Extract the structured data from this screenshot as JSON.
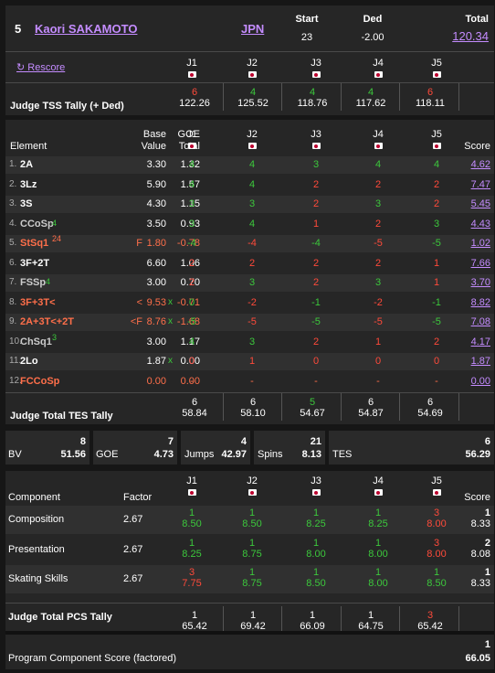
{
  "skater": {
    "rank": "5",
    "name": "Kaori SAKAMOTO",
    "nation": "JPN"
  },
  "summary": {
    "start_label": "Start",
    "start": "23",
    "ded_label": "Ded",
    "ded": "-2.00",
    "total_label": "Total",
    "total": "120.34"
  },
  "rescore": "↻ Rescore",
  "judges": [
    "J1",
    "J2",
    "J3",
    "J4",
    "J5"
  ],
  "tally": {
    "label": "Judge TSS Tally (+ Ded)",
    "ranks": [
      "6",
      "4",
      "4",
      "4",
      "6"
    ],
    "values": [
      "122.26",
      "125.52",
      "118.76",
      "117.62",
      "118.11"
    ]
  },
  "elements_header": {
    "element": "Element",
    "base": "Base",
    "value": "Value",
    "goe": "GOE",
    "total": "Total",
    "score": "Score"
  },
  "elements": [
    {
      "n": "1.",
      "name": "2A",
      "sup": "",
      "note": "",
      "base": "3.30",
      "x": "",
      "goe": "1.32",
      "j": [
        "4",
        "4",
        "3",
        "4",
        "4"
      ],
      "score": "4.62",
      "cls": "w"
    },
    {
      "n": "2.",
      "name": "3Lz",
      "sup": "",
      "note": "",
      "base": "5.90",
      "x": "",
      "goe": "1.57",
      "j": [
        "4",
        "4",
        "2",
        "2",
        "2"
      ],
      "score": "7.47",
      "cls": "w"
    },
    {
      "n": "3.",
      "name": "3S",
      "sup": "",
      "note": "",
      "base": "4.30",
      "x": "",
      "goe": "1.15",
      "j": [
        "3",
        "3",
        "2",
        "3",
        "2"
      ],
      "score": "5.45",
      "cls": "w"
    },
    {
      "n": "4.",
      "name": "CCoSp",
      "sup": "4",
      "note": "",
      "base": "3.50",
      "x": "",
      "goe": "0.93",
      "j": [
        "3",
        "4",
        "1",
        "2",
        "3"
      ],
      "score": "4.43",
      "cls": "y"
    },
    {
      "n": "5.",
      "name": "StSq1",
      "sup": "24",
      "note": "F",
      "base": "1.80",
      "x": "",
      "goe": "-0.78",
      "j": [
        "-4",
        "-4",
        "-4",
        "-5",
        "-5"
      ],
      "score": "1.02",
      "cls": "or"
    },
    {
      "n": "6.",
      "name": "3F+2T",
      "sup": "",
      "note": "",
      "base": "6.60",
      "x": "",
      "goe": "1.06",
      "j": [
        "2",
        "2",
        "2",
        "2",
        "1"
      ],
      "score": "7.66",
      "cls": "w"
    },
    {
      "n": "7.",
      "name": "FSSp",
      "sup": "4",
      "note": "",
      "base": "3.00",
      "x": "",
      "goe": "0.70",
      "j": [
        "2",
        "3",
        "2",
        "3",
        "1"
      ],
      "score": "3.70",
      "cls": "y"
    },
    {
      "n": "8.",
      "name": "3F+3T<",
      "sup": "",
      "note": "<",
      "base": "9.53",
      "x": "x",
      "goe": "-0.71",
      "j": [
        "0",
        "-2",
        "-1",
        "-2",
        "-1"
      ],
      "score": "8.82",
      "cls": "or"
    },
    {
      "n": "9.",
      "name": "2A+3T<+2T",
      "sup": "",
      "note": "<F",
      "base": "8.76",
      "x": "x",
      "goe": "-1.68",
      "j": [
        "-5",
        "-5",
        "-5",
        "-5",
        "-5"
      ],
      "score": "7.08",
      "cls": "or"
    },
    {
      "n": "10.",
      "name": "ChSq1",
      "sup": "3",
      "note": "",
      "base": "3.00",
      "x": "",
      "goe": "1.17",
      "j": [
        "4",
        "3",
        "2",
        "1",
        "2"
      ],
      "score": "4.17",
      "cls": "y"
    },
    {
      "n": "11.",
      "name": "2Lo",
      "sup": "",
      "note": "",
      "base": "1.87",
      "x": "x",
      "goe": "0.00",
      "j": [
        "0",
        "1",
        "0",
        "0",
        "0"
      ],
      "score": "1.87",
      "cls": "w"
    },
    {
      "n": "12.",
      "name": "FCCoSp",
      "sup": "",
      "note": "",
      "base": "0.00",
      "x": "",
      "goe": "0.00",
      "j": [
        "-",
        "-",
        "-",
        "-",
        "-"
      ],
      "score": "0.00",
      "cls": "or"
    }
  ],
  "tes_tally": {
    "label": "Judge Total TES Tally",
    "ranks": [
      "6",
      "6",
      "5",
      "6",
      "6"
    ],
    "values": [
      "58.84",
      "58.10",
      "54.67",
      "54.87",
      "54.69"
    ]
  },
  "totals": {
    "bv_label": "BV",
    "bv_rank": "8",
    "bv": "51.56",
    "goe_label": "GOE",
    "goe_rank": "7",
    "goe": "4.73",
    "jumps_label": "Jumps",
    "jumps_rank": "4",
    "jumps": "42.97",
    "spins_label": "Spins",
    "spins_rank": "21",
    "spins": "8.13",
    "tes_label": "TES",
    "tes_rank": "6",
    "tes": "56.29"
  },
  "components_header": {
    "component": "Component",
    "factor": "Factor",
    "score": "Score"
  },
  "components": [
    {
      "name": "Composition",
      "factor": "2.67",
      "ranks": [
        "1",
        "1",
        "1",
        "1",
        "3"
      ],
      "marks": [
        "8.50",
        "8.50",
        "8.25",
        "8.25",
        "8.00"
      ],
      "score_rank": "1",
      "score": "8.33"
    },
    {
      "name": "Presentation",
      "factor": "2.67",
      "ranks": [
        "1",
        "1",
        "1",
        "1",
        "3"
      ],
      "marks": [
        "8.25",
        "8.75",
        "8.00",
        "8.00",
        "8.00"
      ],
      "score_rank": "2",
      "score": "8.08"
    },
    {
      "name": "Skating Skills",
      "factor": "2.67",
      "ranks": [
        "3",
        "1",
        "1",
        "1",
        "1"
      ],
      "marks": [
        "7.75",
        "8.75",
        "8.50",
        "8.00",
        "8.50"
      ],
      "score_rank": "1",
      "score": "8.33"
    }
  ],
  "pcs_tally": {
    "label": "Judge Total PCS Tally",
    "ranks": [
      "1",
      "1",
      "1",
      "1",
      "3"
    ],
    "values": [
      "65.42",
      "69.42",
      "66.09",
      "64.75",
      "65.42"
    ]
  },
  "pcs": {
    "label": "Program Component Score (factored)",
    "rank": "1",
    "value": "66.05"
  },
  "colors": {
    "good": "#3cc83c",
    "bad": "#ff4a3a",
    "link": "#c48cff",
    "panel": "#262626"
  }
}
